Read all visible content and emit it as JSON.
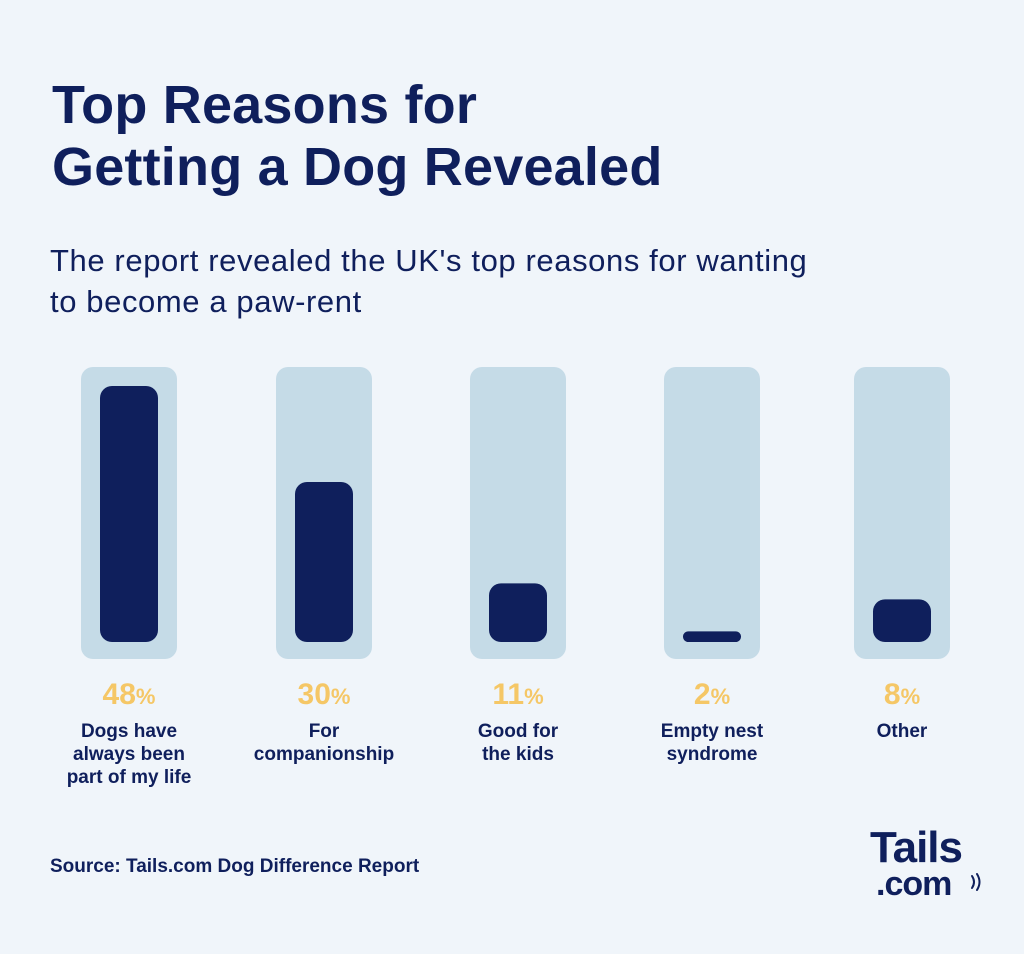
{
  "title_line1": "Top Reasons for",
  "title_line2": "Getting a Dog Revealed",
  "subtitle_line1": "The report revealed the UK's top reasons for wanting",
  "subtitle_line2": "to become a paw-rent",
  "source": "Source: Tails.com Dog Difference Report",
  "logo": {
    "line1": "Tails",
    "line2": ".com"
  },
  "colors": {
    "background": "#f0f5fa",
    "track": "#c5dbe7",
    "bar": "#0f1f5c",
    "percent": "#f5c766",
    "text": "#0f1f5c"
  },
  "chart_data": {
    "type": "bar",
    "categories": [
      [
        "Dogs have",
        "always been",
        "part of my life"
      ],
      [
        "For",
        "companionship"
      ],
      [
        "Good for",
        "the kids"
      ],
      [
        "Empty nest",
        "syndrome"
      ],
      [
        "Other"
      ]
    ],
    "values": [
      48,
      30,
      11,
      2,
      8
    ],
    "value_labels": [
      "48",
      "30",
      "11",
      "2",
      "8"
    ],
    "unit": "%",
    "ylim": [
      0,
      48
    ]
  }
}
